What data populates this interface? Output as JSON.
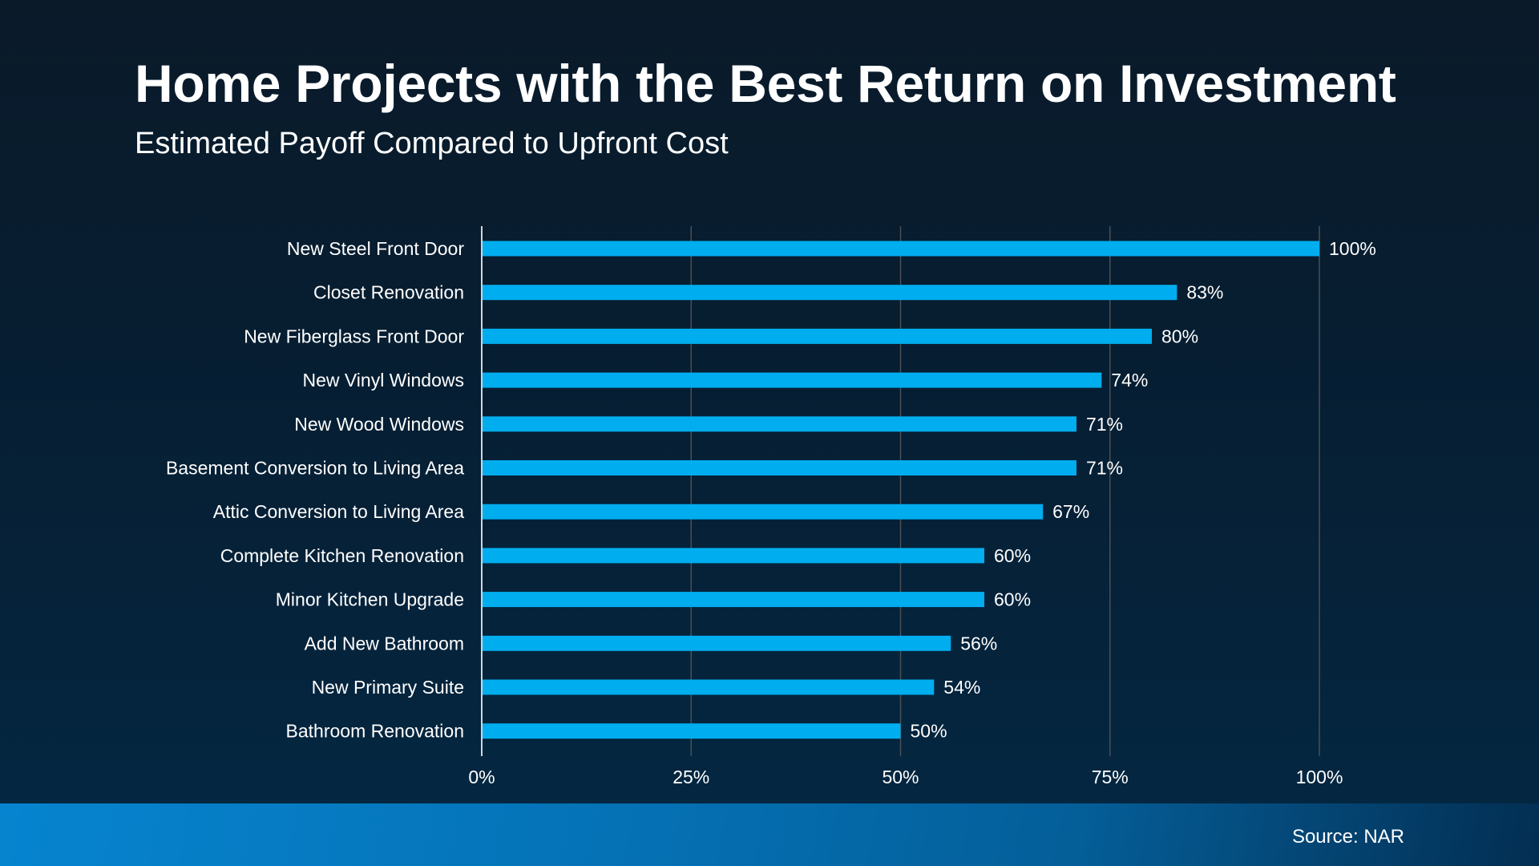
{
  "chart_data": {
    "type": "bar",
    "orientation": "horizontal",
    "title": "Home Projects with the Best Return on Investment",
    "subtitle": "Estimated Payoff Compared to Upfront Cost",
    "categories": [
      "New Steel Front Door",
      "Closet Renovation",
      "New Fiberglass Front Door",
      "New Vinyl Windows",
      "New Wood Windows",
      "Basement Conversion to Living Area",
      "Attic Conversion to Living Area",
      "Complete Kitchen Renovation",
      "Minor Kitchen Upgrade",
      "Add New Bathroom",
      "New Primary Suite",
      "Bathroom Renovation"
    ],
    "values": [
      100,
      83,
      80,
      74,
      71,
      71,
      67,
      60,
      60,
      56,
      54,
      50
    ],
    "value_labels": [
      "100%",
      "83%",
      "80%",
      "74%",
      "71%",
      "71%",
      "67%",
      "60%",
      "60%",
      "56%",
      "54%",
      "50%"
    ],
    "xlim": [
      0,
      100
    ],
    "xticks": [
      0,
      25,
      50,
      75,
      100
    ],
    "xtick_labels": [
      "0%",
      "25%",
      "50%",
      "75%",
      "100%"
    ],
    "grid": "vertical",
    "bar_color": "#00adef",
    "source": "Source: NAR"
  }
}
